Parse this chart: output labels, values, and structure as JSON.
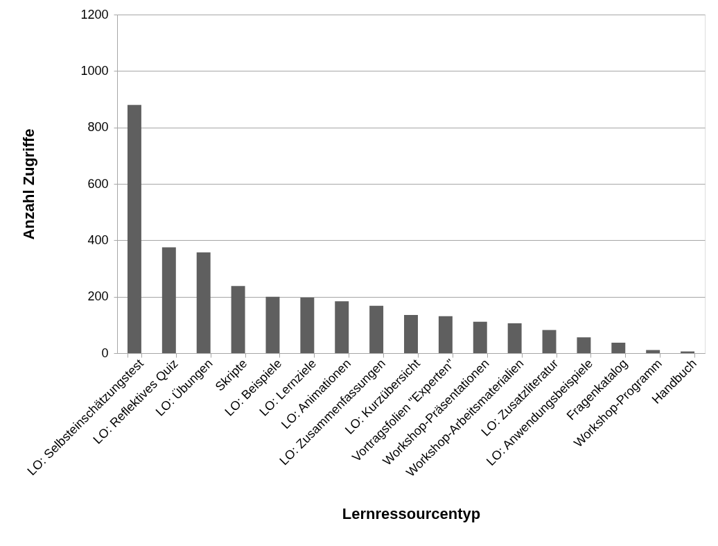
{
  "chart_data": {
    "type": "bar",
    "xlabel": "Lernressourcentyp",
    "ylabel": "Anzahl Zugriffe",
    "categories": [
      "LO: Selbsteinschätzungstest",
      "LO: Reflektives Quiz",
      "LO: Übungen",
      "Skripte",
      "LO: Beispiele",
      "LO: Lernziele",
      "LO: Animationen",
      "LO: Zusammenfassungen",
      "LO: Kurzübersicht",
      "Vortragsfolien \"Experten\"",
      "Workshop-Präsentationen",
      "Workshop-Arbeitsmaterialien",
      "LO: Zusatzliteratur",
      "LO: Anwendungsbeispiele",
      "Fragenkatalog",
      "Workshop-Programm",
      "Handbuch"
    ],
    "values": [
      880,
      375,
      357,
      238,
      200,
      197,
      184,
      168,
      135,
      131,
      111,
      106,
      82,
      56,
      37,
      11,
      6
    ],
    "color": "#5f5f5f",
    "ylim": [
      0,
      1200
    ],
    "yticks": [
      0,
      200,
      400,
      600,
      800,
      1000,
      1200
    ],
    "grid": "y"
  }
}
